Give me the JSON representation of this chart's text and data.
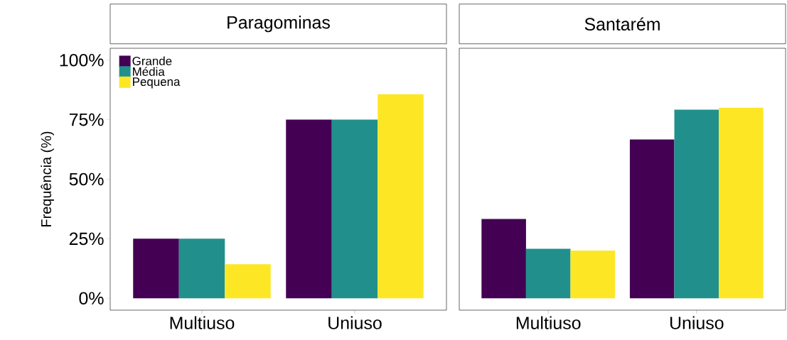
{
  "chart_data": [
    {
      "type": "bar",
      "title": "Paragominas",
      "ylabel": "Frequência (%)",
      "categories": [
        "Multiuso",
        "Uniuso"
      ],
      "series": [
        {
          "name": "Grande",
          "color": "#440154",
          "values": [
            25,
            75
          ]
        },
        {
          "name": "Média",
          "color": "#21908c",
          "values": [
            25,
            75
          ]
        },
        {
          "name": "Pequena",
          "color": "#fde725",
          "values": [
            14.3,
            85.7
          ]
        }
      ],
      "ylim": [
        -5,
        105
      ],
      "yticks": [
        {
          "value": 0,
          "label": "0%"
        },
        {
          "value": 25,
          "label": "25%"
        },
        {
          "value": 50,
          "label": "50%"
        },
        {
          "value": 75,
          "label": "75%"
        },
        {
          "value": 100,
          "label": "100%"
        }
      ],
      "legend": "top left",
      "grid": false
    },
    {
      "type": "bar",
      "title": "Santarém",
      "categories": [
        "Multiuso",
        "Uniuso"
      ],
      "series": [
        {
          "color": "#440154",
          "values": [
            33.3,
            66.7
          ]
        },
        {
          "color": "#21908c",
          "values": [
            20.8,
            79.2
          ]
        },
        {
          "color": "#fde725",
          "values": [
            20,
            80
          ]
        }
      ],
      "ylim": [
        -5,
        105
      ],
      "tick_labels": "x",
      "legend": false,
      "grid": false
    }
  ]
}
